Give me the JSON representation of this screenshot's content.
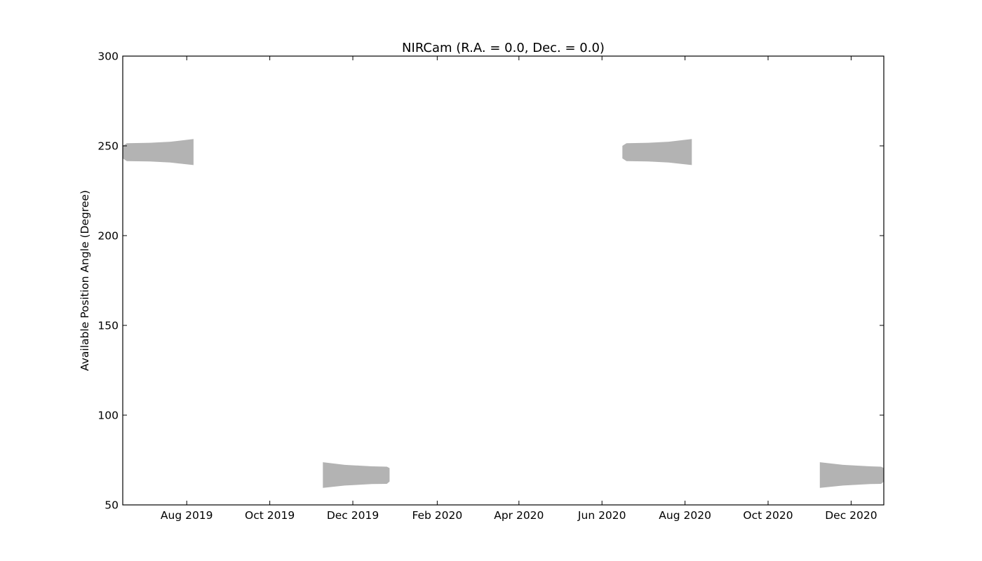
{
  "chart_data": {
    "type": "area",
    "title": "NIRCam (R.A. = 0.0, Dec. = 0.0)",
    "xlabel": "",
    "ylabel": "Available Position Angle (Degree)",
    "x_axis": "date",
    "xlim": [
      "2019-06-15",
      "2020-12-25"
    ],
    "ylim": [
      50,
      300
    ],
    "x_ticks": [
      {
        "date": "2019-08-01",
        "label": "Aug 2019"
      },
      {
        "date": "2019-10-01",
        "label": "Oct 2019"
      },
      {
        "date": "2019-12-01",
        "label": "Dec 2019"
      },
      {
        "date": "2020-02-01",
        "label": "Feb 2020"
      },
      {
        "date": "2020-04-01",
        "label": "Apr 2020"
      },
      {
        "date": "2020-06-01",
        "label": "Jun 2020"
      },
      {
        "date": "2020-08-01",
        "label": "Aug 2020"
      },
      {
        "date": "2020-10-01",
        "label": "Oct 2020"
      },
      {
        "date": "2020-12-01",
        "label": "Dec 2020"
      }
    ],
    "y_ticks": [
      50,
      100,
      150,
      200,
      250,
      300
    ],
    "grid": false,
    "fill_color": "#b3b3b3",
    "windows": [
      {
        "upper": [
          [
            "2019-06-15",
            250
          ],
          [
            "2019-06-18",
            251.5
          ],
          [
            "2019-07-05",
            251.7
          ],
          [
            "2019-07-20",
            252.3
          ],
          [
            "2019-08-06",
            253.8
          ]
        ],
        "lower": [
          [
            "2019-06-15",
            243
          ],
          [
            "2019-06-18",
            241.5
          ],
          [
            "2019-07-05",
            241.3
          ],
          [
            "2019-07-20",
            240.7
          ],
          [
            "2019-08-06",
            239.3
          ]
        ]
      },
      {
        "upper": [
          [
            "2019-11-09",
            73.8
          ],
          [
            "2019-11-25",
            72.3
          ],
          [
            "2019-12-15",
            71.5
          ],
          [
            "2019-12-26",
            71.3
          ],
          [
            "2019-12-28",
            70.5
          ]
        ],
        "lower": [
          [
            "2019-11-09",
            59.5
          ],
          [
            "2019-11-25",
            60.8
          ],
          [
            "2019-12-15",
            61.6
          ],
          [
            "2019-12-26",
            61.7
          ],
          [
            "2019-12-28",
            63
          ]
        ]
      },
      {
        "upper": [
          [
            "2020-06-16",
            250
          ],
          [
            "2020-06-19",
            251.5
          ],
          [
            "2020-07-05",
            251.7
          ],
          [
            "2020-07-20",
            252.3
          ],
          [
            "2020-08-06",
            253.8
          ]
        ],
        "lower": [
          [
            "2020-06-16",
            243
          ],
          [
            "2020-06-19",
            241.5
          ],
          [
            "2020-07-05",
            241.3
          ],
          [
            "2020-07-20",
            240.7
          ],
          [
            "2020-08-06",
            239.3
          ]
        ]
      },
      {
        "upper": [
          [
            "2020-11-08",
            73.8
          ],
          [
            "2020-11-25",
            72.3
          ],
          [
            "2020-12-15",
            71.5
          ],
          [
            "2020-12-23",
            71.3
          ],
          [
            "2020-12-25",
            70.5
          ]
        ],
        "lower": [
          [
            "2020-11-08",
            59.5
          ],
          [
            "2020-11-25",
            60.8
          ],
          [
            "2020-12-15",
            61.6
          ],
          [
            "2020-12-23",
            61.7
          ],
          [
            "2020-12-25",
            63
          ]
        ]
      }
    ]
  }
}
